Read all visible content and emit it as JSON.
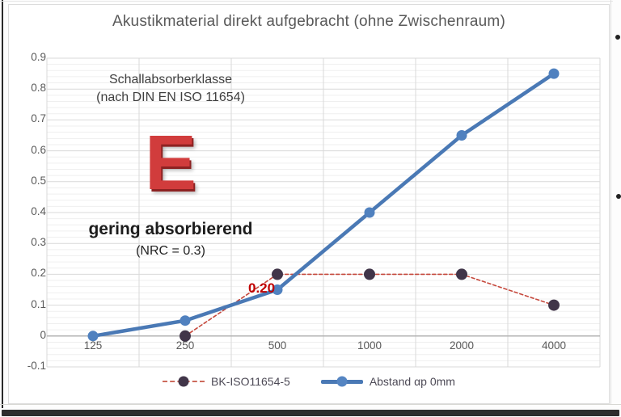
{
  "chart": {
    "title": "Akustikmaterial direkt aufgebracht (ohne Zwischenraum)"
  },
  "annotations": {
    "class_heading_line1": "Schallabsorberklasse",
    "class_heading_line2": "(nach DIN EN ISO 11654)",
    "class_letter": "E",
    "class_description": "gering absorbierend",
    "class_nrc": "(NRC = 0.3)",
    "point_label": "0.20"
  },
  "legend": {
    "series1_label": "BK-ISO11654-5",
    "series2_label": "Abstand  αp 0mm"
  },
  "colors": {
    "series1_line": "#c6483c",
    "series1_marker": "#413549",
    "series2_line": "#4a79b5",
    "series2_marker": "#5081bf",
    "data_label": "#c00000",
    "class_letter": "#d13c3c",
    "grid_major": "#d9d9d9",
    "grid_minor": "#efefef",
    "axis_line": "#b3b3b3",
    "text": "#595959"
  },
  "chart_data": {
    "type": "line",
    "title": "Akustikmaterial direkt aufgebracht (ohne Zwischenraum)",
    "categories": [
      "125",
      "250",
      "500",
      "1000",
      "2000",
      "4000"
    ],
    "series": [
      {
        "name": "BK-ISO11654-5",
        "values": [
          null,
          0,
          0.2,
          0.2,
          0.2,
          0.1
        ],
        "style": "dashed",
        "line_color": "#c6483c",
        "marker_color": "#413549"
      },
      {
        "name": "Abstand αp 0mm",
        "values": [
          0,
          0.05,
          0.15,
          0.4,
          0.65,
          0.85
        ],
        "style": "solid",
        "line_color": "#4a79b5",
        "marker_color": "#5081bf"
      }
    ],
    "xlabel": "",
    "ylabel": "",
    "ylim": [
      -0.1,
      0.9
    ],
    "ytick_step": 0.1,
    "ytick_labels": [
      "0.9",
      "0.8",
      "0.7",
      "0.6",
      "0.5",
      "0.4",
      "0.3",
      "0.2",
      "0.1",
      "0",
      "-0.1"
    ],
    "minor_ytick_step": 0.02,
    "grid": true,
    "legend_position": "bottom",
    "data_labels": [
      {
        "series": "BK-ISO11654-5",
        "category": "500",
        "value": 0.2,
        "text": "0.20"
      }
    ]
  }
}
